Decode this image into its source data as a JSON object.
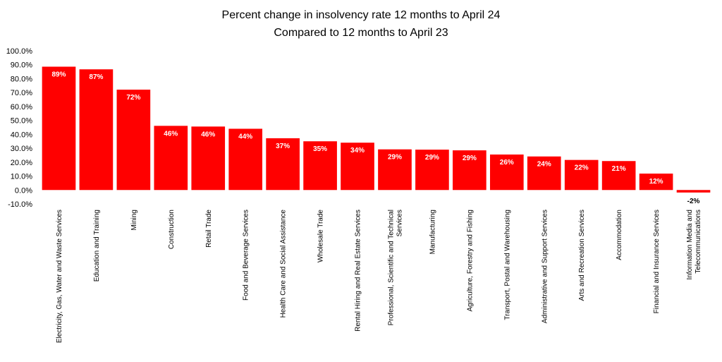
{
  "chart_data": {
    "type": "bar",
    "title": "Percent change in insolvency rate 12 months to April 24",
    "subtitle": "Compared to 12 months to April 23",
    "xlabel": "",
    "ylabel": "",
    "ylim": [
      -10,
      100
    ],
    "ytick_step": 10,
    "yticks": [
      "-10.0%",
      "0.0%",
      "10.0%",
      "20.0%",
      "30.0%",
      "40.0%",
      "50.0%",
      "60.0%",
      "70.0%",
      "80.0%",
      "90.0%",
      "100.0%"
    ],
    "grid": false,
    "legend": "none",
    "bar_color": "#ff0000",
    "categories": [
      [
        "Electricity, Gas, Water and Waste Services"
      ],
      [
        "Education and Training"
      ],
      [
        "Mining"
      ],
      [
        "Construction"
      ],
      [
        "Retail Trade"
      ],
      [
        "Food and Beverage Services"
      ],
      [
        "Health Care and Social Assistance"
      ],
      [
        "Wholesale Trade"
      ],
      [
        "Rental Hiring and Real Estate Services"
      ],
      [
        "Professional, Scientific and Technical",
        "Services"
      ],
      [
        "Manufacturing"
      ],
      [
        "Agriculture, Forestry and Fishing"
      ],
      [
        "Transport, Postal and Warehousing"
      ],
      [
        "Administrative and Support Services"
      ],
      [
        "Arts and Recreation Services"
      ],
      [
        "Accommodation"
      ],
      [
        "Financial and Insurance Services"
      ],
      [
        "Information Media and",
        "Telecommunications"
      ]
    ],
    "values": [
      88.6,
      86.7,
      72.1,
      46.1,
      45.6,
      44.0,
      37.2,
      35.0,
      34.0,
      29.2,
      29.0,
      28.5,
      25.5,
      24.1,
      21.6,
      20.8,
      11.8,
      -1.8
    ],
    "data_labels": [
      "89%",
      "87%",
      "72%",
      "46%",
      "46%",
      "44%",
      "37%",
      "35%",
      "34%",
      "29%",
      "29%",
      "29%",
      "26%",
      "24%",
      "22%",
      "21%",
      "12%",
      "-2%"
    ]
  }
}
